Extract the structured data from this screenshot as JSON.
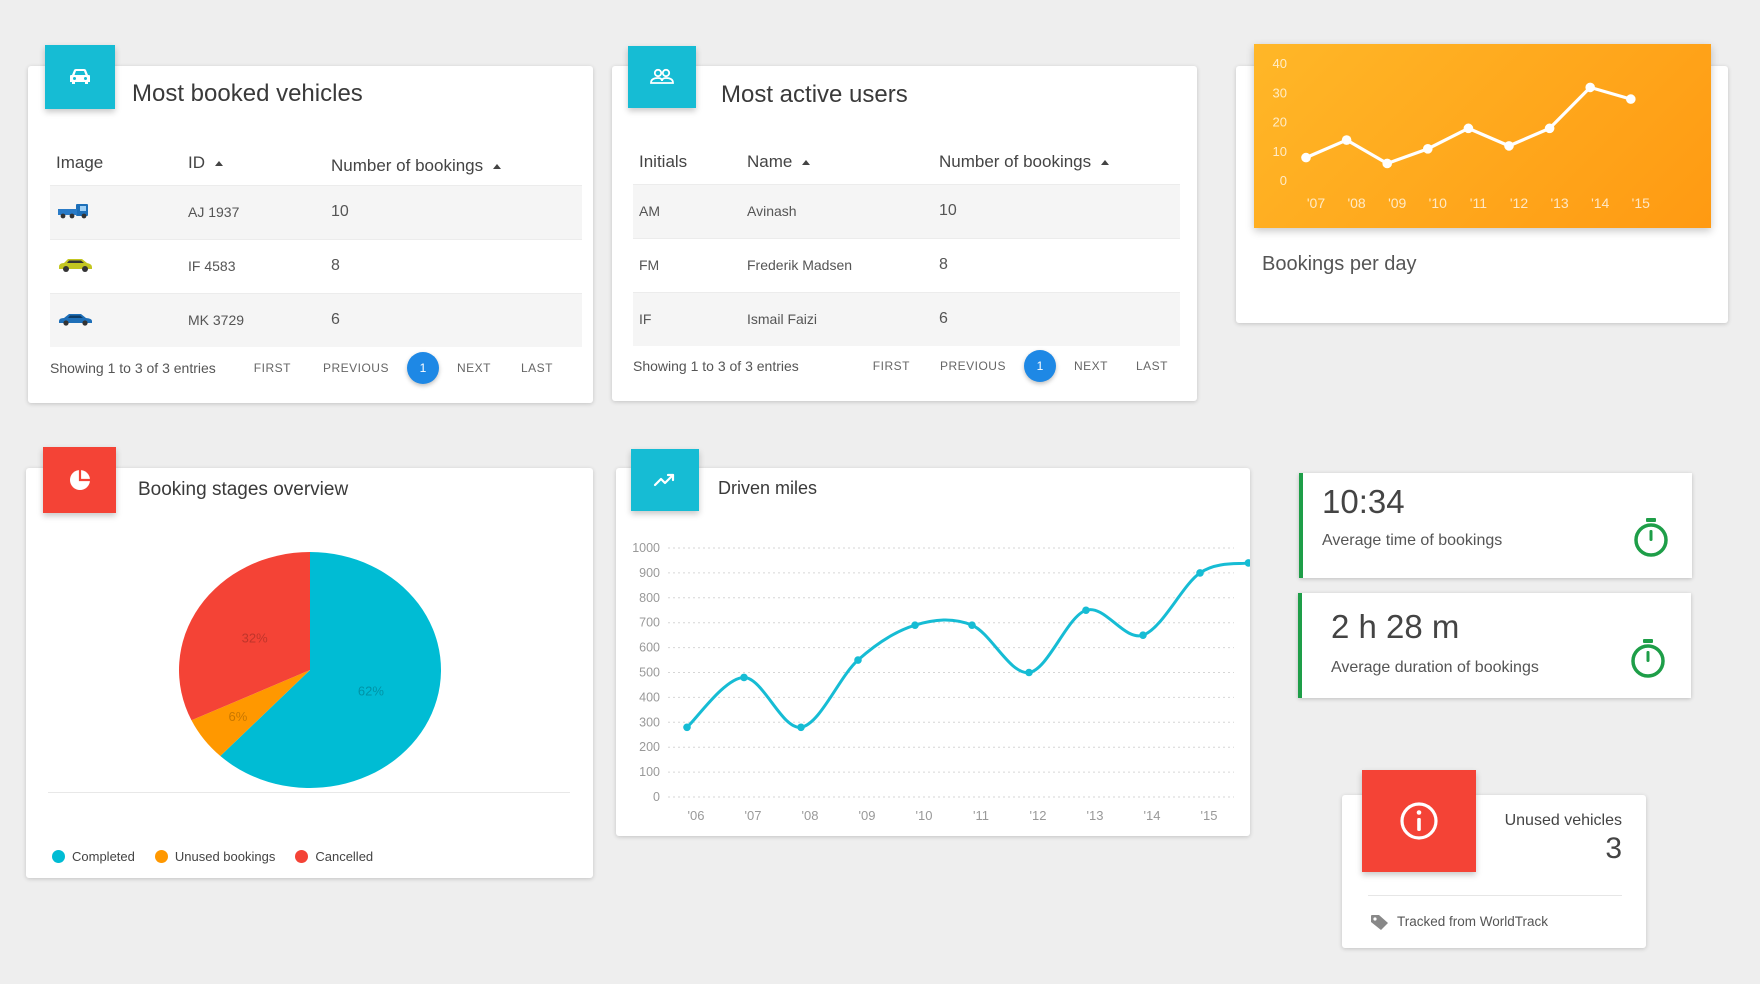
{
  "vehicles": {
    "title": "Most booked vehicles",
    "headers": {
      "image": "Image",
      "id": "ID",
      "bookings": "Number of bookings"
    },
    "rows": [
      {
        "icon": "truck-icon",
        "color": "#1e6fb8",
        "id": "AJ 1937",
        "bookings": "10"
      },
      {
        "icon": "car-icon",
        "color": "#c3c620",
        "id": "IF 4583",
        "bookings": "8"
      },
      {
        "icon": "car-icon",
        "color": "#1e6fb8",
        "id": "MK 3729",
        "bookings": "6"
      }
    ],
    "pager": {
      "info": "Showing 1 to 3 of 3 entries",
      "first": "FIRST",
      "previous": "PREVIOUS",
      "page": "1",
      "next": "NEXT",
      "last": "LAST"
    }
  },
  "users": {
    "title": "Most active users",
    "headers": {
      "initials": "Initials",
      "name": "Name",
      "bookings": "Number of bookings"
    },
    "rows": [
      {
        "initials": "AM",
        "name": "Avinash",
        "bookings": "10"
      },
      {
        "initials": "FM",
        "name": "Frederik Madsen",
        "bookings": "8"
      },
      {
        "initials": "IF",
        "name": "Ismail Faizi",
        "bookings": "6"
      }
    ],
    "pager": {
      "info": "Showing 1 to 3 of 3 entries",
      "first": "FIRST",
      "previous": "PREVIOUS",
      "page": "1",
      "next": "NEXT",
      "last": "LAST"
    }
  },
  "bookings_per_day": {
    "label": "Bookings per day",
    "accent": "#ff9f1a"
  },
  "booking_stages": {
    "title": "Booking stages overview",
    "legend": [
      {
        "label": "Completed",
        "color": "#00bcd4"
      },
      {
        "label": "Unused bookings",
        "color": "#ff9800"
      },
      {
        "label": "Cancelled",
        "color": "#f44336"
      }
    ]
  },
  "driven_miles": {
    "title": "Driven miles",
    "accent": "#16bcd4"
  },
  "avg_time": {
    "value": "10:34",
    "label": "Average time of bookings"
  },
  "avg_duration": {
    "value": "2 h 28 m",
    "label": "Average duration of bookings"
  },
  "unused": {
    "label": "Unused vehicles",
    "value": "3",
    "footer": "Tracked from WorldTrack"
  },
  "chart_data": [
    {
      "type": "line",
      "title": "Bookings per day",
      "categories": [
        "'07",
        "'08",
        "'09",
        "'10",
        "'11",
        "'12",
        "'13",
        "'14",
        "'15"
      ],
      "values": [
        8,
        14,
        6,
        11,
        18,
        12,
        18,
        32,
        28
      ],
      "ylim": [
        0,
        40
      ],
      "yticks": [
        0,
        10,
        20,
        30,
        40
      ],
      "grid": false
    },
    {
      "type": "pie",
      "title": "Booking stages overview",
      "labels": [
        "Completed",
        "Unused bookings",
        "Cancelled"
      ],
      "values": [
        62,
        6,
        32
      ],
      "value_labels": [
        "62%",
        "6%",
        "32%"
      ],
      "colors": [
        "#00bcd4",
        "#ff9800",
        "#f44336"
      ]
    },
    {
      "type": "line",
      "title": "Driven miles",
      "categories": [
        "'06",
        "'07",
        "'08",
        "'09",
        "'10",
        "'11",
        "'12",
        "'13",
        "'14",
        "'15"
      ],
      "x": [
        0,
        1,
        2,
        3,
        4,
        5,
        6,
        7,
        8,
        9,
        9.85
      ],
      "values": [
        280,
        480,
        280,
        550,
        690,
        690,
        500,
        750,
        650,
        900,
        940
      ],
      "ylim": [
        0,
        1000
      ],
      "yticks": [
        0,
        100,
        200,
        300,
        400,
        500,
        600,
        700,
        800,
        900,
        1000
      ],
      "grid": true
    }
  ]
}
